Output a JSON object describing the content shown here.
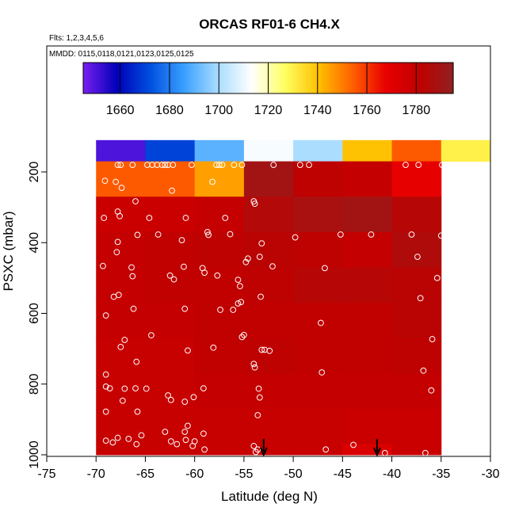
{
  "chart_data": {
    "type": "heatmap",
    "title": "ORCAS RF01-6 CH4.X",
    "flights_note": "Flts: 1,2,3,4,5,6",
    "dates_note": "MMDD: 0115,0118,0121,0123,0125,0125",
    "xlabel": "Latitude (deg N)",
    "ylabel": "PSXC (mbar)",
    "xlim": [
      -75,
      -30
    ],
    "ylim": [
      1000,
      50
    ],
    "x_ticks": [
      -75,
      -70,
      -65,
      -60,
      -55,
      -50,
      -45,
      -40,
      -35,
      -30
    ],
    "y_ticks": [
      200,
      400,
      600,
      800,
      1000
    ],
    "colorbar": {
      "min": 1645,
      "max": 1795,
      "ticks": [
        1660,
        1680,
        1700,
        1720,
        1740,
        1760,
        1780
      ],
      "colors": [
        "#7a1ff0",
        "#0000b8",
        "#0050e0",
        "#3aa0ff",
        "#a8dcff",
        "#ffffff",
        "#ffff60",
        "#ffc000",
        "#ff6000",
        "#e80000",
        "#c00000",
        "#902020"
      ]
    },
    "lat_bins": [
      -70,
      -65,
      -60,
      -55,
      -50,
      -45,
      -40,
      -35,
      -30
    ],
    "pres_bins": [
      110,
      170,
      270,
      370,
      470,
      570,
      670,
      770,
      870,
      970,
      1000
    ],
    "cell_values": [
      [
        1650,
        1670,
        1690,
        1712,
        1700,
        1740,
        1755,
        1730
      ],
      [
        1755,
        1755,
        1745,
        1790,
        1782,
        1780,
        1768,
        null
      ],
      [
        1778,
        1778,
        1780,
        1785,
        1788,
        1790,
        1784,
        null
      ],
      [
        1780,
        1781,
        1782,
        1783,
        1782,
        1780,
        1786,
        null
      ],
      [
        1780,
        1781,
        1781,
        1782,
        1784,
        1784,
        1783,
        null
      ],
      [
        1780,
        1780,
        1781,
        1781,
        1781,
        1781,
        1783,
        null
      ],
      [
        1779,
        1779,
        1781,
        1782,
        1781,
        1781,
        1782,
        null
      ],
      [
        1779,
        1779,
        1780,
        1780,
        1780,
        1780,
        1780,
        null
      ],
      [
        1779,
        1779,
        1779,
        1779,
        1779,
        1778,
        1778,
        null
      ],
      [
        1779,
        1779,
        1779,
        1779,
        1779,
        1772,
        1778,
        null
      ]
    ],
    "samples": [
      {
        "lat": -67.8,
        "p": 180
      },
      {
        "lat": -67.5,
        "p": 180
      },
      {
        "lat": -66.3,
        "p": 180
      },
      {
        "lat": -64.8,
        "p": 180
      },
      {
        "lat": -64.3,
        "p": 180
      },
      {
        "lat": -63.8,
        "p": 180
      },
      {
        "lat": -63.3,
        "p": 180
      },
      {
        "lat": -63.0,
        "p": 180
      },
      {
        "lat": -62.7,
        "p": 180
      },
      {
        "lat": -62.2,
        "p": 180
      },
      {
        "lat": -60.3,
        "p": 180
      },
      {
        "lat": -57.8,
        "p": 180
      },
      {
        "lat": -57.5,
        "p": 180
      },
      {
        "lat": -57.2,
        "p": 180
      },
      {
        "lat": -56.0,
        "p": 180
      },
      {
        "lat": -55.2,
        "p": 180
      },
      {
        "lat": -52.0,
        "p": 180
      },
      {
        "lat": -49.3,
        "p": 180
      },
      {
        "lat": -48.4,
        "p": 180
      },
      {
        "lat": -38.6,
        "p": 180
      },
      {
        "lat": -37.3,
        "p": 180
      },
      {
        "lat": -34.9,
        "p": 180
      },
      {
        "lat": -69.1,
        "p": 225
      },
      {
        "lat": -68.0,
        "p": 228
      },
      {
        "lat": -67.4,
        "p": 245
      },
      {
        "lat": -66.0,
        "p": 283
      },
      {
        "lat": -62.3,
        "p": 253
      },
      {
        "lat": -58.2,
        "p": 228
      },
      {
        "lat": -54.0,
        "p": 283
      },
      {
        "lat": -53.9,
        "p": 290
      },
      {
        "lat": -69.2,
        "p": 330
      },
      {
        "lat": -67.8,
        "p": 312
      },
      {
        "lat": -67.6,
        "p": 325
      },
      {
        "lat": -64.6,
        "p": 330
      },
      {
        "lat": -60.9,
        "p": 330
      },
      {
        "lat": -56.9,
        "p": 330
      },
      {
        "lat": -63.7,
        "p": 377
      },
      {
        "lat": -61.3,
        "p": 393
      },
      {
        "lat": -58.6,
        "p": 378
      },
      {
        "lat": -58.7,
        "p": 370
      },
      {
        "lat": -56.4,
        "p": 376
      },
      {
        "lat": -53.2,
        "p": 402
      },
      {
        "lat": -49.8,
        "p": 385
      },
      {
        "lat": -45.2,
        "p": 377
      },
      {
        "lat": -42.1,
        "p": 377
      },
      {
        "lat": -38.0,
        "p": 377
      },
      {
        "lat": -35.0,
        "p": 380
      },
      {
        "lat": -67.8,
        "p": 398
      },
      {
        "lat": -65.8,
        "p": 378
      },
      {
        "lat": -67.9,
        "p": 427
      },
      {
        "lat": -69.3,
        "p": 466
      },
      {
        "lat": -66.4,
        "p": 470
      },
      {
        "lat": -66.3,
        "p": 495
      },
      {
        "lat": -62.5,
        "p": 493
      },
      {
        "lat": -62.1,
        "p": 504
      },
      {
        "lat": -61.1,
        "p": 468
      },
      {
        "lat": -59.2,
        "p": 472
      },
      {
        "lat": -59.0,
        "p": 485
      },
      {
        "lat": -57.7,
        "p": 493
      },
      {
        "lat": -54.8,
        "p": 455
      },
      {
        "lat": -54.6,
        "p": 445
      },
      {
        "lat": -53.4,
        "p": 440
      },
      {
        "lat": -55.6,
        "p": 505
      },
      {
        "lat": -55.4,
        "p": 523
      },
      {
        "lat": -52.1,
        "p": 467
      },
      {
        "lat": -46.8,
        "p": 472
      },
      {
        "lat": -37.4,
        "p": 440
      },
      {
        "lat": -35.4,
        "p": 500
      },
      {
        "lat": -68.2,
        "p": 553
      },
      {
        "lat": -67.7,
        "p": 548
      },
      {
        "lat": -66.2,
        "p": 587
      },
      {
        "lat": -69.0,
        "p": 606
      },
      {
        "lat": -61.0,
        "p": 587
      },
      {
        "lat": -57.4,
        "p": 590
      },
      {
        "lat": -56.1,
        "p": 590
      },
      {
        "lat": -55.6,
        "p": 572
      },
      {
        "lat": -55.3,
        "p": 568
      },
      {
        "lat": -53.3,
        "p": 553
      },
      {
        "lat": -37.1,
        "p": 557
      },
      {
        "lat": -64.4,
        "p": 662
      },
      {
        "lat": -60.7,
        "p": 705
      },
      {
        "lat": -58.1,
        "p": 697
      },
      {
        "lat": -55.2,
        "p": 667
      },
      {
        "lat": -55.0,
        "p": 661
      },
      {
        "lat": -53.2,
        "p": 703
      },
      {
        "lat": -52.9,
        "p": 703
      },
      {
        "lat": -52.4,
        "p": 706
      },
      {
        "lat": -47.2,
        "p": 627
      },
      {
        "lat": -67.1,
        "p": 675
      },
      {
        "lat": -67.5,
        "p": 695
      },
      {
        "lat": -65.9,
        "p": 737
      },
      {
        "lat": -35.9,
        "p": 673
      },
      {
        "lat": -54.0,
        "p": 743
      },
      {
        "lat": -53.9,
        "p": 753
      },
      {
        "lat": -47.1,
        "p": 767
      },
      {
        "lat": -36.8,
        "p": 762
      },
      {
        "lat": -69.0,
        "p": 773
      },
      {
        "lat": -69.0,
        "p": 807
      },
      {
        "lat": -68.6,
        "p": 812
      },
      {
        "lat": -67.1,
        "p": 813
      },
      {
        "lat": -66.0,
        "p": 812
      },
      {
        "lat": -64.9,
        "p": 813
      },
      {
        "lat": -65.8,
        "p": 878
      },
      {
        "lat": -67.3,
        "p": 847
      },
      {
        "lat": -69.0,
        "p": 878
      },
      {
        "lat": -62.7,
        "p": 832
      },
      {
        "lat": -62.4,
        "p": 845
      },
      {
        "lat": -61.0,
        "p": 850
      },
      {
        "lat": -60.1,
        "p": 837
      },
      {
        "lat": -59.1,
        "p": 812
      },
      {
        "lat": -53.5,
        "p": 813
      },
      {
        "lat": -53.4,
        "p": 838
      },
      {
        "lat": -53.6,
        "p": 888
      },
      {
        "lat": -36.0,
        "p": 818
      },
      {
        "lat": -60.7,
        "p": 918
      },
      {
        "lat": -61.0,
        "p": 935
      },
      {
        "lat": -63.0,
        "p": 935
      },
      {
        "lat": -62.4,
        "p": 962
      },
      {
        "lat": -61.8,
        "p": 970
      },
      {
        "lat": -60.9,
        "p": 958
      },
      {
        "lat": -60.0,
        "p": 962
      },
      {
        "lat": -60.2,
        "p": 975
      },
      {
        "lat": -59.1,
        "p": 940
      },
      {
        "lat": -59.0,
        "p": 985
      },
      {
        "lat": -69.0,
        "p": 960
      },
      {
        "lat": -68.3,
        "p": 965
      },
      {
        "lat": -67.8,
        "p": 952
      },
      {
        "lat": -66.7,
        "p": 955
      },
      {
        "lat": -65.9,
        "p": 970
      },
      {
        "lat": -65.4,
        "p": 945
      },
      {
        "lat": -54.0,
        "p": 975
      },
      {
        "lat": -53.8,
        "p": 992
      },
      {
        "lat": -53.6,
        "p": 985
      },
      {
        "lat": -46.7,
        "p": 985
      },
      {
        "lat": -43.9,
        "p": 972
      },
      {
        "lat": -40.7,
        "p": 995
      },
      {
        "lat": -36.6,
        "p": 995
      }
    ],
    "arrows": [
      {
        "lat": -53.0,
        "p_top": 955,
        "p_tip": 1000
      },
      {
        "lat": -41.5,
        "p_top": 955,
        "p_tip": 1000
      }
    ]
  }
}
